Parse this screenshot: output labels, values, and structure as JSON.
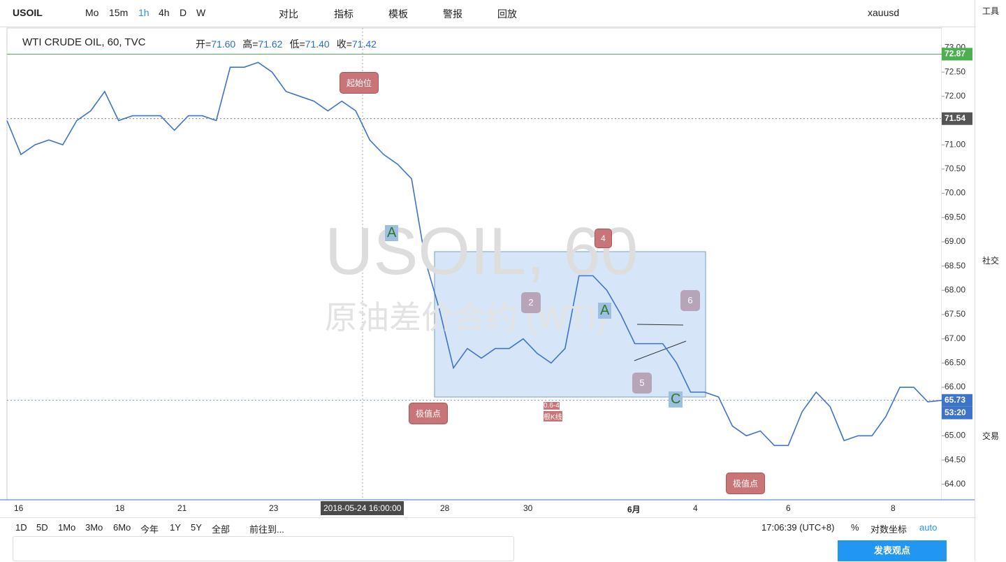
{
  "toolbar": {
    "symbol": "USOIL",
    "intervals": [
      "Mo",
      "15m",
      "1h",
      "4h",
      "D",
      "W"
    ],
    "buttons": [
      "对比",
      "指标",
      "模板",
      "警报",
      "回放"
    ],
    "layout_name": "xauusd"
  },
  "header": {
    "title": "WTI CRUDE OIL, 60, TVC",
    "ohlc": [
      {
        "label": "开=",
        "value": "71.60"
      },
      {
        "label": "高=",
        "value": "71.62"
      },
      {
        "label": "低=",
        "value": "71.40"
      },
      {
        "label": "收=",
        "value": "71.42"
      }
    ]
  },
  "watermark": {
    "symbol": "USOIL, 60",
    "description": "原油差价合约 (WTI)"
  },
  "chart_data": {
    "type": "line",
    "color": "#3d73c9",
    "values": [
      71.5,
      70.8,
      71.0,
      71.1,
      71.0,
      71.5,
      71.7,
      72.1,
      71.5,
      71.6,
      71.6,
      71.6,
      71.3,
      71.6,
      71.6,
      71.5,
      72.6,
      72.6,
      72.7,
      72.5,
      72.1,
      72.0,
      71.9,
      71.7,
      71.9,
      71.7,
      71.1,
      70.8,
      70.6,
      70.3,
      68.6,
      67.6,
      66.4,
      66.8,
      66.6,
      66.8,
      66.8,
      67.0,
      66.7,
      66.5,
      66.8,
      68.3,
      68.3,
      68.0,
      67.5,
      66.9,
      66.9,
      66.9,
      66.5,
      65.9,
      65.9,
      65.8,
      65.2,
      65.0,
      65.1,
      64.8,
      64.8,
      65.5,
      65.9,
      65.6,
      64.9,
      65.0,
      65.0,
      65.4,
      66.0,
      66.0,
      65.7,
      65.73
    ],
    "ylim": [
      63.68,
      73.41
    ],
    "yticks": [
      {
        "value": 64,
        "label": "64.00"
      },
      {
        "value": 64.5,
        "label": "64.50"
      },
      {
        "value": 65,
        "label": "65.00"
      },
      {
        "value": 65.5,
        "label": "65.50"
      },
      {
        "value": 66,
        "label": "66.00"
      },
      {
        "value": 66.5,
        "label": "66.50"
      },
      {
        "value": 67,
        "label": "67.00"
      },
      {
        "value": 67.5,
        "label": "67.50"
      },
      {
        "value": 68,
        "label": "68.00"
      },
      {
        "value": 68.5,
        "label": "68.50"
      },
      {
        "value": 69,
        "label": "69.00"
      },
      {
        "value": 69.5,
        "label": "69.50"
      },
      {
        "value": 70,
        "label": "70.00"
      },
      {
        "value": 70.5,
        "label": "70.50"
      },
      {
        "value": 71,
        "label": "71.00"
      },
      {
        "value": 71.5,
        "label": "71.50"
      },
      {
        "value": 72,
        "label": "72.00"
      },
      {
        "value": 72.5,
        "label": "72.50"
      },
      {
        "value": 73,
        "label": "73.00"
      }
    ],
    "price_lines": [
      {
        "value": 72.87,
        "color": "#4caf50"
      },
      {
        "value": 71.54,
        "color": "#555555"
      },
      {
        "value": 65.73,
        "color": "#3d73c9"
      }
    ],
    "countdown": "53:20",
    "x_labels": [
      "16",
      "18",
      "21",
      "23",
      "28",
      "30",
      "6月",
      "4",
      "6",
      "8"
    ],
    "crosshair_time": "2018-05-24 16:00:00"
  },
  "annotations": [
    "起始位",
    "极值点",
    "极值点",
    "4",
    "2",
    "6",
    "5",
    "A",
    "A",
    "C",
    "0.6-4",
    "根K线"
  ],
  "bottom_bar": {
    "ranges": [
      "1D",
      "5D",
      "1Mo",
      "3Mo",
      "6Mo",
      "今年",
      "1Y",
      "5Y",
      "全部"
    ],
    "goto": "前往到...",
    "clock": "17:06:39 (UTC+8)",
    "percent": "%",
    "log": "对数坐标",
    "auto": "auto"
  },
  "sidebar": {
    "labels": [
      "工具",
      "社交",
      "交易"
    ]
  },
  "publish_button": "发表观点"
}
